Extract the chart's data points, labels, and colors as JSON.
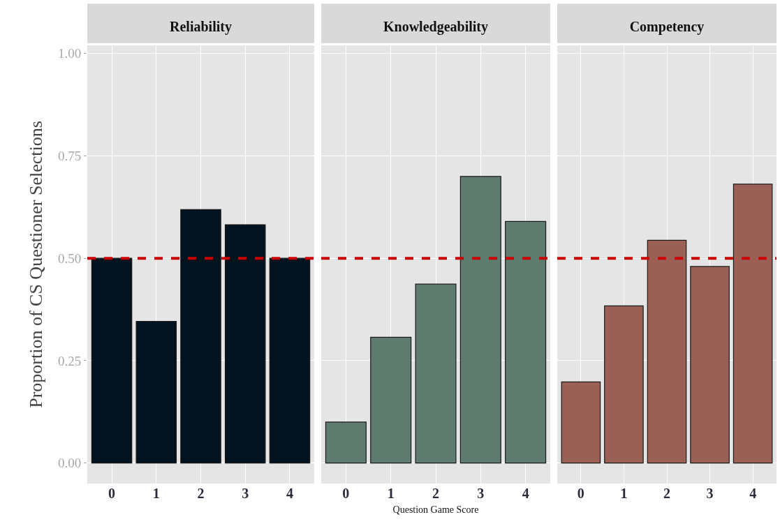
{
  "chart_data": [
    {
      "type": "bar",
      "title": "Reliability",
      "ylabel": "Proportion of CS Questioner Selections",
      "categories": [
        "0",
        "1",
        "2",
        "3",
        "4"
      ],
      "values": [
        0.5,
        0.346,
        0.619,
        0.582,
        0.5
      ],
      "color": "#02121f",
      "ylim": [
        -0.05,
        1.02
      ],
      "yticks": [
        {
          "value": 0,
          "label": "0.00"
        },
        {
          "value": 0.25,
          "label": "0.25"
        },
        {
          "value": 0.5,
          "label": "0.50"
        },
        {
          "value": 0.75,
          "label": "0.75"
        },
        {
          "value": 1,
          "label": "1.00"
        }
      ],
      "grid": true,
      "ref_lines": [
        {
          "axis": "y",
          "value": 0.5,
          "color": "#cc0000",
          "line_style": "dashed"
        }
      ]
    },
    {
      "type": "bar",
      "title": "Knowledgeability",
      "xlabel": "Question Game Score",
      "categories": [
        "0",
        "1",
        "2",
        "3",
        "4"
      ],
      "values": [
        0.1,
        0.307,
        0.437,
        0.7,
        0.59
      ],
      "color": "#5f7a6e",
      "ylim": [
        -0.05,
        1.02
      ],
      "yticks": [
        0,
        0.25,
        0.5,
        0.75,
        1
      ],
      "grid": true,
      "tick_labels": "x",
      "ref_lines": [
        {
          "axis": "y",
          "value": 0.5,
          "color": "#cc0000",
          "line_style": "dashed"
        }
      ]
    },
    {
      "type": "bar",
      "title": "Competency",
      "categories": [
        "0",
        "1",
        "2",
        "3",
        "4"
      ],
      "values": [
        0.198,
        0.384,
        0.544,
        0.48,
        0.681
      ],
      "color": "#9a5f55",
      "ylim": [
        -0.05,
        1.02
      ],
      "yticks": [
        0,
        0.25,
        0.5,
        0.75,
        1
      ],
      "grid": true,
      "tick_labels": "x",
      "ref_lines": [
        {
          "axis": "y",
          "value": 0.5,
          "color": "#cc0000",
          "line_style": "dashed"
        }
      ]
    }
  ]
}
